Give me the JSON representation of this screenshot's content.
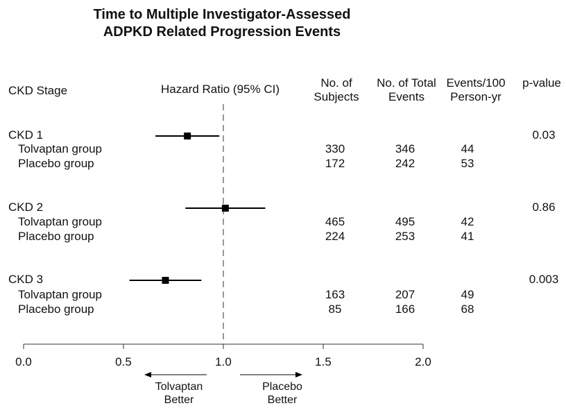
{
  "chart_data": {
    "type": "forest",
    "title_line1": "Time to Multiple Investigator-Assessed",
    "title_line2": "ADPKD Related Progression Events",
    "columns": {
      "stage": "CKD Stage",
      "hr": "Hazard Ratio (95% CI)",
      "subjects_1": "No. of",
      "subjects_2": "Subjects",
      "events_1": "No. of Total",
      "events_2": "Events",
      "rate_1": "Events/100",
      "rate_2": "Person-yr",
      "pvalue": "p-value"
    },
    "groups": [
      {
        "stage": "CKD 1",
        "hr": 0.82,
        "ci": [
          0.66,
          0.98
        ],
        "p": "0.03",
        "rows": [
          {
            "label": "Tolvaptan group",
            "subjects": "330",
            "events": "346",
            "rate": "44"
          },
          {
            "label": "Placebo group",
            "subjects": "172",
            "events": "242",
            "rate": "53"
          }
        ]
      },
      {
        "stage": "CKD 2",
        "hr": 1.01,
        "ci": [
          0.81,
          1.21
        ],
        "p": "0.86",
        "rows": [
          {
            "label": "Tolvaptan group",
            "subjects": "465",
            "events": "495",
            "rate": "42"
          },
          {
            "label": "Placebo group",
            "subjects": "224",
            "events": "253",
            "rate": "41"
          }
        ]
      },
      {
        "stage": "CKD 3",
        "hr": 0.71,
        "ci": [
          0.53,
          0.89
        ],
        "p": "0.003",
        "rows": [
          {
            "label": "Tolvaptan group",
            "subjects": "163",
            "events": "207",
            "rate": "49"
          },
          {
            "label": "Placebo group",
            "subjects": "85",
            "events": "166",
            "rate": "68"
          }
        ]
      }
    ],
    "xlim": [
      0.0,
      2.0
    ],
    "x_ticks": [
      0.0,
      0.5,
      1.0,
      1.5,
      2.0
    ],
    "x_tick_labels": [
      "0.0",
      "0.5",
      "1.0",
      "1.5",
      "2.0"
    ],
    "reference_line": 1.0,
    "left_annotation_1": "Tolvaptan",
    "left_annotation_2": "Better",
    "right_annotation_1": "Placebo",
    "right_annotation_2": "Better",
    "colors": {
      "marker": "#000000",
      "reference": "#777777",
      "axis": "#333333"
    }
  }
}
